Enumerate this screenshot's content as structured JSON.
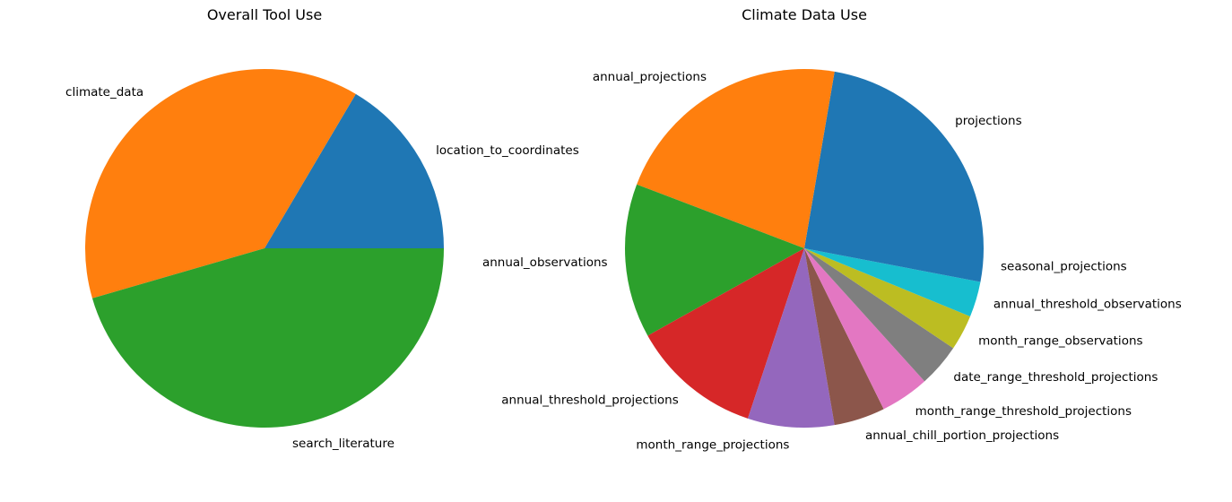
{
  "chart_data": [
    {
      "type": "pie",
      "title": "Overall Tool Use",
      "center": [
        295,
        277
      ],
      "radius": 200,
      "start_angle": 0,
      "counterclock": true,
      "categories": [
        "location_to_coordinates",
        "climate_data",
        "search_literature"
      ],
      "values": [
        16.5,
        38.0,
        45.5
      ],
      "colors": [
        "#1f77b4",
        "#ff7f0e",
        "#2ca02c"
      ],
      "legend": false
    },
    {
      "type": "pie",
      "title": "Climate Data Use",
      "center": [
        897,
        277
      ],
      "radius": 200,
      "start_angle": 0,
      "counterclock": true,
      "categories": [
        "projections",
        "annual_projections",
        "annual_observations",
        "annual_threshold_projections",
        "month_range_projections",
        "annual_chill_portion_projections",
        "month_range_threshold_projections",
        "date_range_threshold_projections",
        "month_range_observations",
        "annual_threshold_observations",
        "seasonal_projections"
      ],
      "values": [
        22.3,
        21.9,
        13.9,
        11.8,
        7.8,
        4.6,
        4.4,
        3.9,
        3.2,
        3.2,
        3.0
      ],
      "colors": [
        "#1f77b4",
        "#ff7f0e",
        "#2ca02c",
        "#d62728",
        "#9467bd",
        "#8c564b",
        "#e377c2",
        "#7f7f7f",
        "#bcbd22",
        "#17becf",
        "#1f77b4"
      ],
      "legend": false
    }
  ]
}
